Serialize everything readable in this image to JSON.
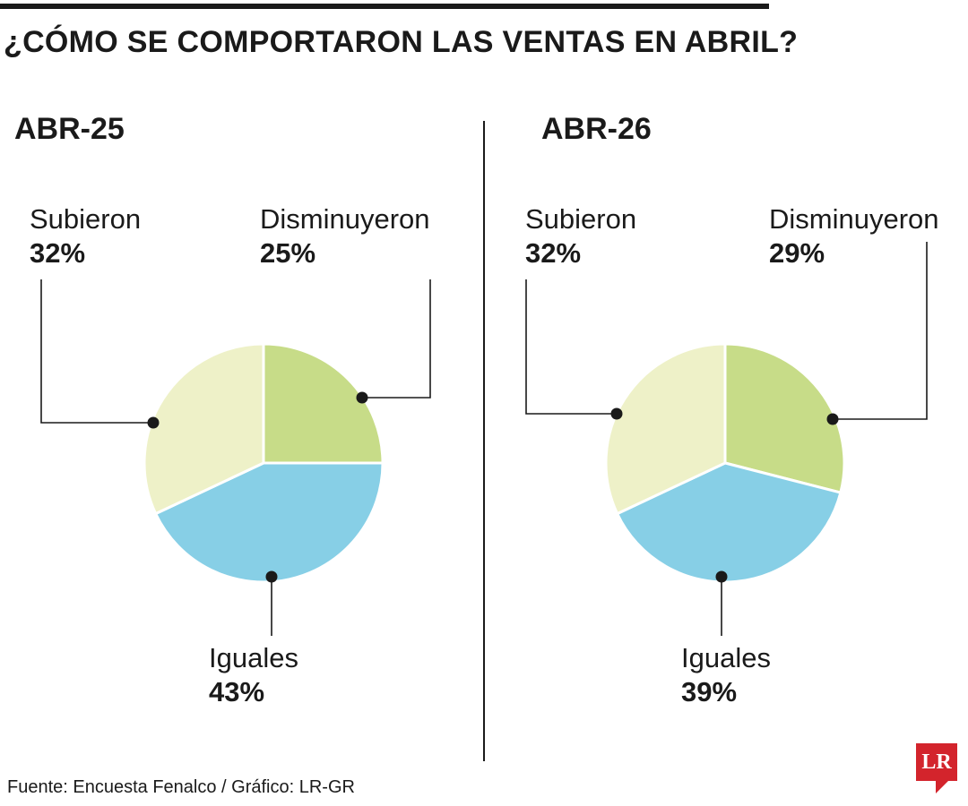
{
  "title": "¿CÓMO SE COMPORTARON LAS VENTAS EN ABRIL?",
  "source": "Fuente: Encuesta Fenalco / Gráfico: LR-GR",
  "logo_text": "LR",
  "colors": {
    "subieron": "#eef1c8",
    "disminuyeron": "#c7dc88",
    "iguales": "#87cfe6",
    "text": "#1a1a1a",
    "logo": "#d3242c"
  },
  "chart_data": [
    {
      "type": "pie",
      "title": "ABR-25",
      "slices": [
        {
          "label": "Subieron",
          "value": 32,
          "display": "32%",
          "color": "#eef1c8"
        },
        {
          "label": "Disminuyeron",
          "value": 25,
          "display": "25%",
          "color": "#c7dc88"
        },
        {
          "label": "Iguales",
          "value": 43,
          "display": "43%",
          "color": "#87cfe6"
        }
      ]
    },
    {
      "type": "pie",
      "title": "ABR-26",
      "slices": [
        {
          "label": "Subieron",
          "value": 32,
          "display": "32%",
          "color": "#eef1c8"
        },
        {
          "label": "Disminuyeron",
          "value": 29,
          "display": "29%",
          "color": "#c7dc88"
        },
        {
          "label": "Iguales",
          "value": 39,
          "display": "39%",
          "color": "#87cfe6"
        }
      ]
    }
  ]
}
